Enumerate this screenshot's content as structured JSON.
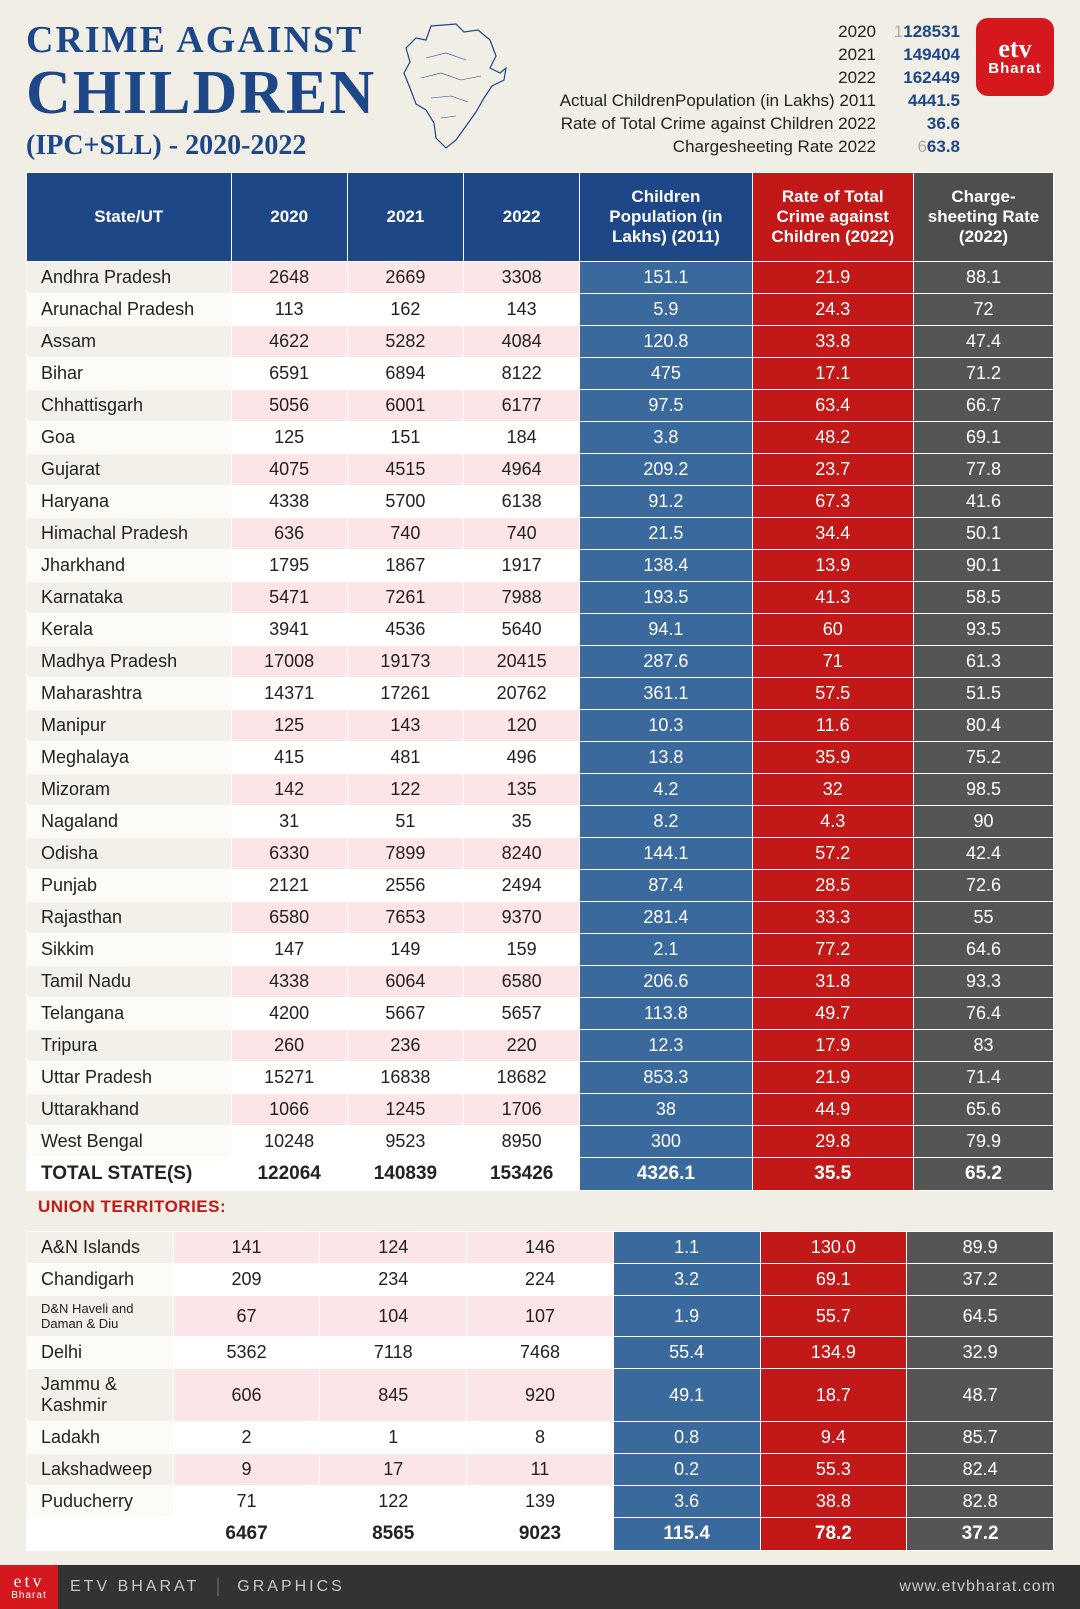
{
  "title": {
    "top": "CRIME AGAINST",
    "main": "CHILDREN",
    "sub": "(IPC+SLL) - 2020-2022"
  },
  "logo": {
    "top": "etv",
    "bottom": "Bharat"
  },
  "summary": [
    {
      "label": "2020",
      "value": "128531",
      "lead": "1"
    },
    {
      "label": "2021",
      "value": "149404",
      "lead": ""
    },
    {
      "label": "2022",
      "value": "162449",
      "lead": ""
    },
    {
      "label": "Actual ChildrenPopulation (in Lakhs) 2011",
      "value": "4441.5",
      "lead": ""
    },
    {
      "label": "Rate of Total Crime against Children 2022",
      "value": "36.6",
      "lead": ""
    },
    {
      "label": "Chargesheeting Rate 2022",
      "value": "63.8",
      "lead": "6"
    }
  ],
  "headers": {
    "state": "State/UT",
    "y2020": "2020",
    "y2021": "2021",
    "y2022": "2022",
    "pop": "Children Population (in Lakhs) (2011)",
    "rate": "Rate of Total Crime against Children (2022)",
    "cs": "Charge-sheeting Rate (2022)"
  },
  "states": [
    [
      "Andhra Pradesh",
      "2648",
      "2669",
      "3308",
      "151.1",
      "21.9",
      "88.1"
    ],
    [
      "Arunachal Pradesh",
      "113",
      "162",
      "143",
      "5.9",
      "24.3",
      "72"
    ],
    [
      "Assam",
      "4622",
      "5282",
      "4084",
      "120.8",
      "33.8",
      "47.4"
    ],
    [
      "Bihar",
      "6591",
      "6894",
      "8122",
      "475",
      "17.1",
      "71.2"
    ],
    [
      "Chhattisgarh",
      "5056",
      "6001",
      "6177",
      "97.5",
      "63.4",
      "66.7"
    ],
    [
      "Goa",
      "125",
      "151",
      "184",
      "3.8",
      "48.2",
      "69.1"
    ],
    [
      "Gujarat",
      "4075",
      "4515",
      "4964",
      "209.2",
      "23.7",
      "77.8"
    ],
    [
      "Haryana",
      "4338",
      "5700",
      "6138",
      "91.2",
      "67.3",
      "41.6"
    ],
    [
      "Himachal Pradesh",
      "636",
      "740",
      "740",
      "21.5",
      "34.4",
      "50.1"
    ],
    [
      "Jharkhand",
      "1795",
      "1867",
      "1917",
      "138.4",
      "13.9",
      "90.1"
    ],
    [
      "Karnataka",
      "5471",
      "7261",
      "7988",
      "193.5",
      "41.3",
      "58.5"
    ],
    [
      "Kerala",
      "3941",
      "4536",
      "5640",
      "94.1",
      "60",
      "93.5"
    ],
    [
      "Madhya Pradesh",
      "17008",
      "19173",
      "20415",
      "287.6",
      "71",
      "61.3"
    ],
    [
      "Maharashtra",
      "14371",
      "17261",
      "20762",
      "361.1",
      "57.5",
      "51.5"
    ],
    [
      "Manipur",
      "125",
      "143",
      "120",
      "10.3",
      "11.6",
      "80.4"
    ],
    [
      "Meghalaya",
      "415",
      "481",
      "496",
      "13.8",
      "35.9",
      "75.2"
    ],
    [
      "Mizoram",
      "142",
      "122",
      "135",
      "4.2",
      "32",
      "98.5"
    ],
    [
      "Nagaland",
      "31",
      "51",
      "35",
      "8.2",
      "4.3",
      "90"
    ],
    [
      "Odisha",
      "6330",
      "7899",
      "8240",
      "144.1",
      "57.2",
      "42.4"
    ],
    [
      "Punjab",
      "2121",
      "2556",
      "2494",
      "87.4",
      "28.5",
      "72.6"
    ],
    [
      "Rajasthan",
      "6580",
      "7653",
      "9370",
      "281.4",
      "33.3",
      "55"
    ],
    [
      "Sikkim",
      "147",
      "149",
      "159",
      "2.1",
      "77.2",
      "64.6"
    ],
    [
      "Tamil Nadu",
      "4338",
      "6064",
      "6580",
      "206.6",
      "31.8",
      "93.3"
    ],
    [
      "Telangana",
      "4200",
      "5667",
      "5657",
      "113.8",
      "49.7",
      "76.4"
    ],
    [
      "Tripura",
      "260",
      "236",
      "220",
      "12.3",
      "17.9",
      "83"
    ],
    [
      "Uttar Pradesh",
      "15271",
      "16838",
      "18682",
      "853.3",
      "21.9",
      "71.4"
    ],
    [
      "Uttarakhand",
      "1066",
      "1245",
      "1706",
      "38",
      "44.9",
      "65.6"
    ],
    [
      "West Bengal",
      "10248",
      "9523",
      "8950",
      "300",
      "29.8",
      "79.9"
    ]
  ],
  "states_total": [
    "TOTAL STATE(S)",
    "122064",
    "140839",
    "153426",
    "4326.1",
    "35.5",
    "65.2"
  ],
  "ut_header": "UNION TERRITORIES:",
  "uts": [
    [
      "A&N Islands",
      "141",
      "124",
      "146",
      "1.1",
      "130.0",
      "89.9"
    ],
    [
      "Chandigarh",
      "209",
      "234",
      "224",
      "3.2",
      "69.1",
      "37.2"
    ],
    [
      "D&N Haveli and Daman & Diu",
      "67",
      "104",
      "107",
      "1.9",
      "55.7",
      "64.5"
    ],
    [
      "Delhi",
      "5362",
      "7118",
      "7468",
      "55.4",
      "134.9",
      "32.9"
    ],
    [
      "Jammu & Kashmir",
      "606",
      "845",
      "920",
      "49.1",
      "18.7",
      "48.7"
    ],
    [
      "Ladakh",
      "2",
      "1",
      "8",
      "0.8",
      "9.4",
      "85.7"
    ],
    [
      "Lakshadweep",
      "9",
      "17",
      "11",
      "0.2",
      "55.3",
      "82.4"
    ],
    [
      "Puducherry",
      "71",
      "122",
      "139",
      "3.6",
      "38.8",
      "82.8"
    ]
  ],
  "uts_total": [
    "",
    "6467",
    "8565",
    "9023",
    "115.4",
    "78.2",
    "37.2"
  ],
  "footer": {
    "brand": "ETV BHARAT",
    "section": "GRAPHICS",
    "url": "www.etvbharat.com"
  }
}
